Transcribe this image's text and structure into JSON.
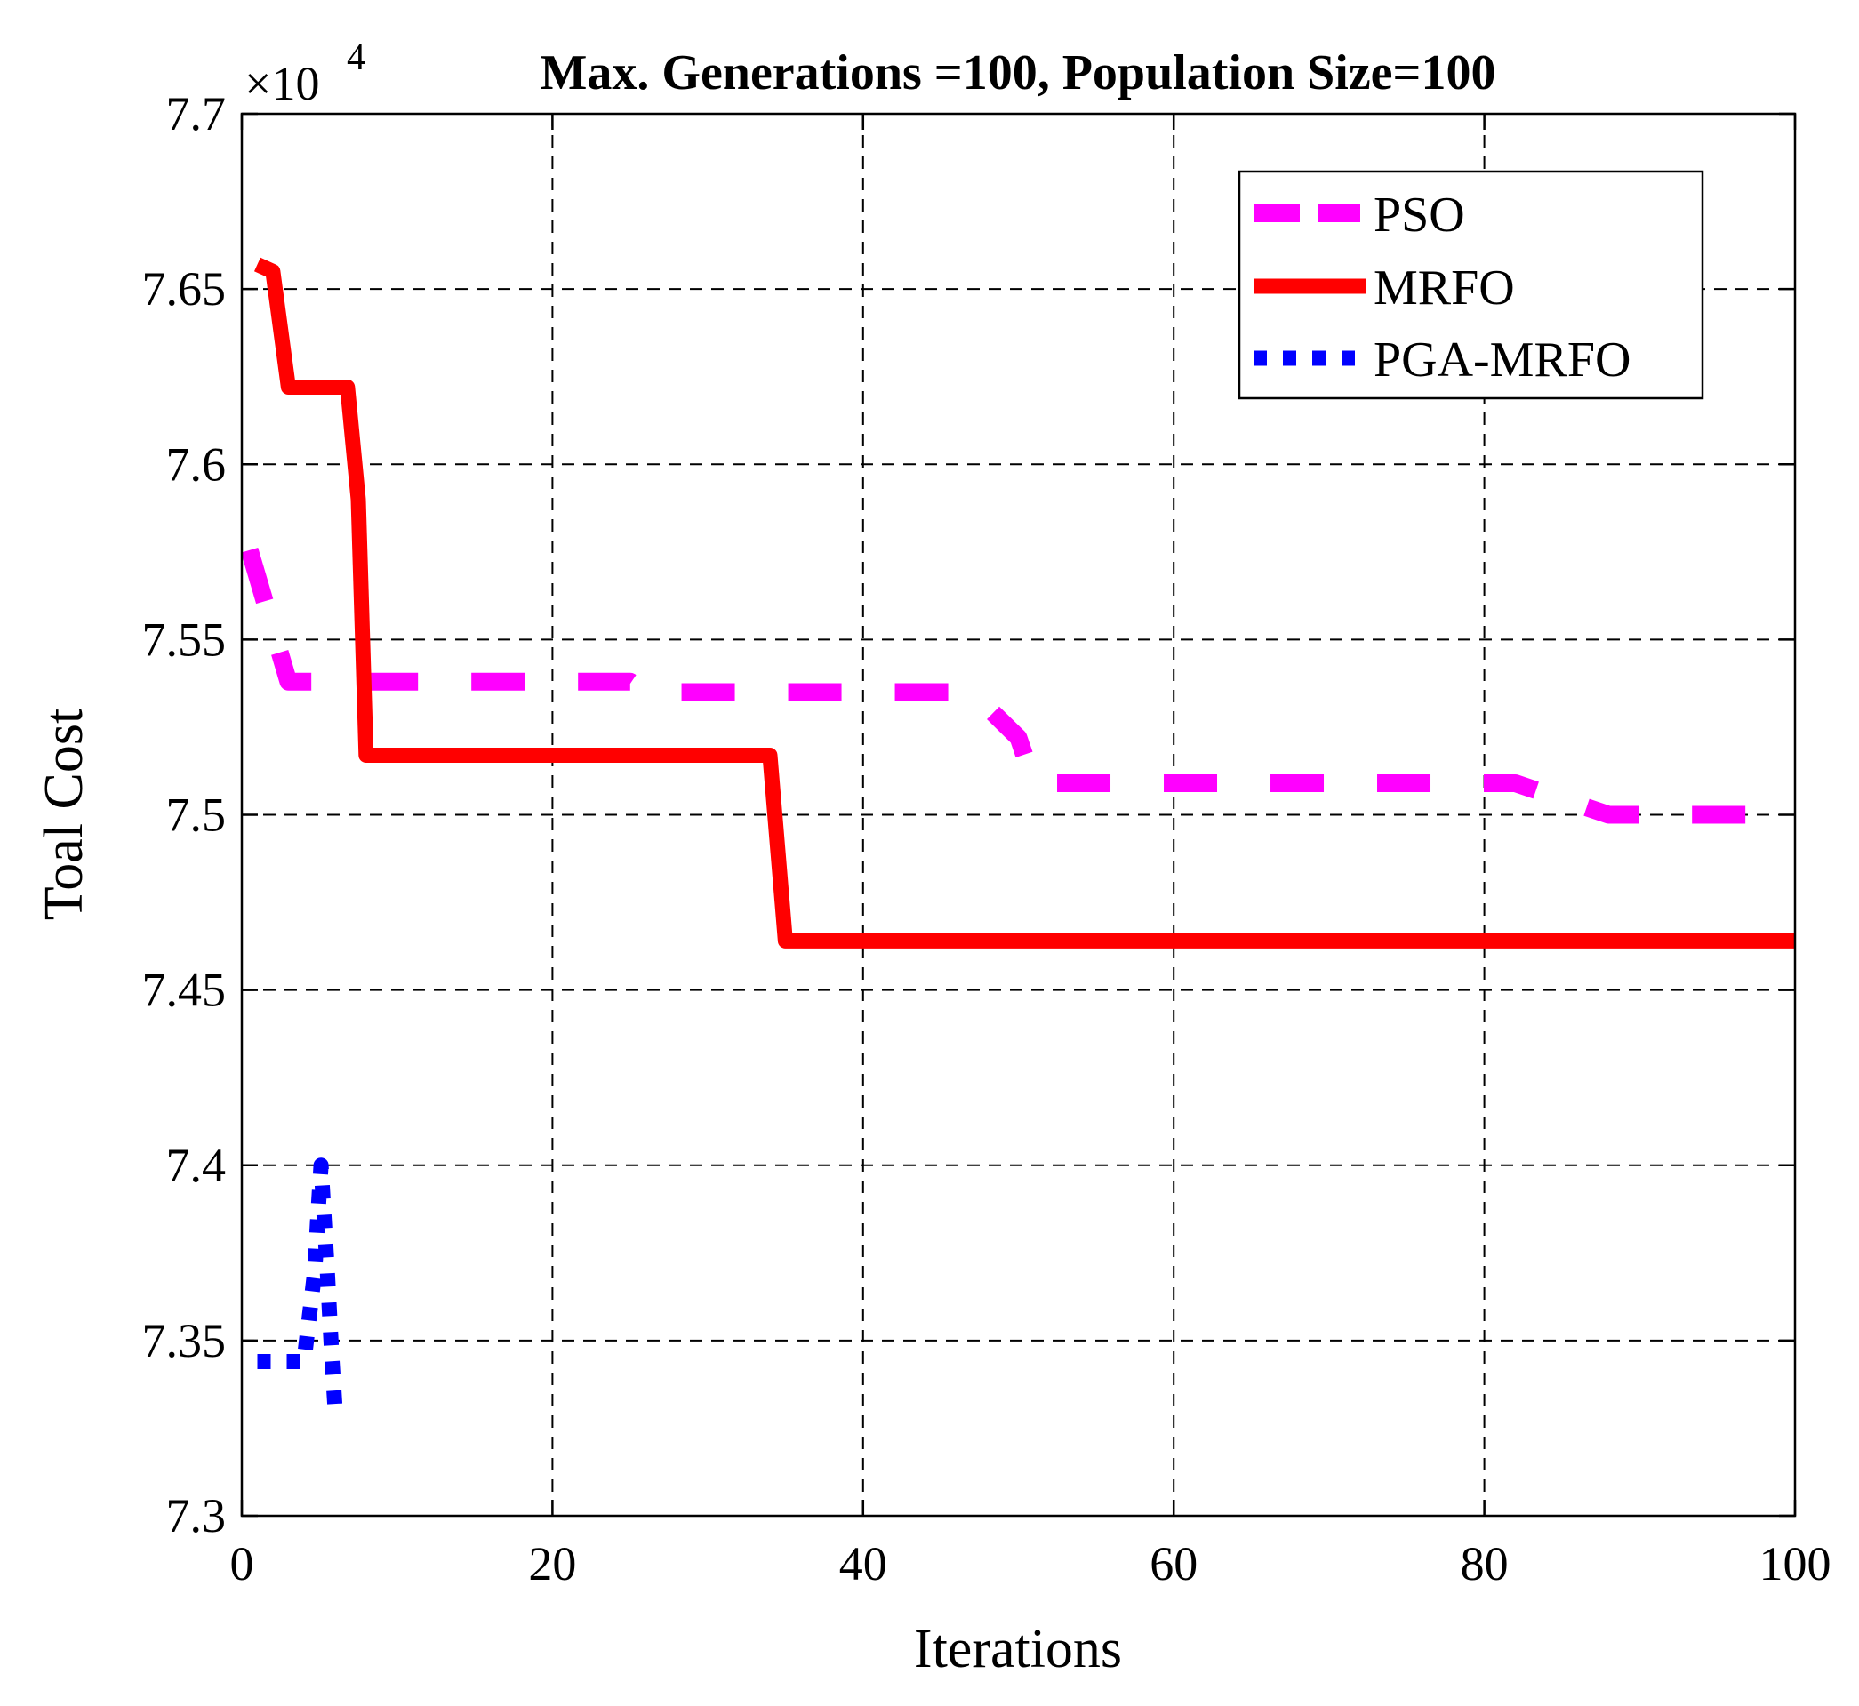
{
  "chart_data": {
    "type": "line",
    "title": "Max. Generations =100, Population Size=100",
    "xlabel": "Iterations",
    "ylabel": "Toal Cost",
    "y_multiplier": {
      "base": "×10",
      "exponent": "4"
    },
    "xlim": [
      0,
      100
    ],
    "ylim": [
      7.3,
      7.7
    ],
    "xticks": [
      0,
      20,
      40,
      60,
      80,
      100
    ],
    "xtick_labels": [
      "0",
      "20",
      "40",
      "60",
      "80",
      "100"
    ],
    "yticks": [
      7.3,
      7.35,
      7.4,
      7.45,
      7.5,
      7.55,
      7.6,
      7.65,
      7.7
    ],
    "ytick_labels": [
      "7.3",
      "7.35",
      "7.4",
      "7.45",
      "7.5",
      "7.55",
      "7.6",
      "7.65",
      "7.7"
    ],
    "grid": true,
    "legend_position": "top-right",
    "series": [
      {
        "name": "PSO",
        "color": "#FF00FF",
        "style": "dashed",
        "x": [
          0.5,
          2,
          3,
          24,
          25,
          26,
          47,
          50,
          51,
          52,
          82,
          88,
          100
        ],
        "y": [
          7.5755,
          7.553,
          7.538,
          7.538,
          7.538,
          7.535,
          7.535,
          7.522,
          7.509,
          7.509,
          7.509,
          7.5,
          7.5
        ]
      },
      {
        "name": "MRFO",
        "color": "#FF0000",
        "style": "solid",
        "x": [
          1,
          2,
          3,
          6.8,
          7.5,
          8,
          34,
          35,
          100
        ],
        "y": [
          7.657,
          7.655,
          7.622,
          7.622,
          7.59,
          7.517,
          7.517,
          7.464,
          7.464
        ]
      },
      {
        "name": "PGA-MRFO",
        "color": "#0000FF",
        "style": "dotted",
        "x": [
          1,
          4,
          4.7,
          4.9,
          5.1,
          5.5,
          5.8,
          6
        ],
        "y": [
          7.344,
          7.344,
          7.37,
          7.386,
          7.4,
          7.37,
          7.345,
          7.331
        ]
      }
    ]
  }
}
